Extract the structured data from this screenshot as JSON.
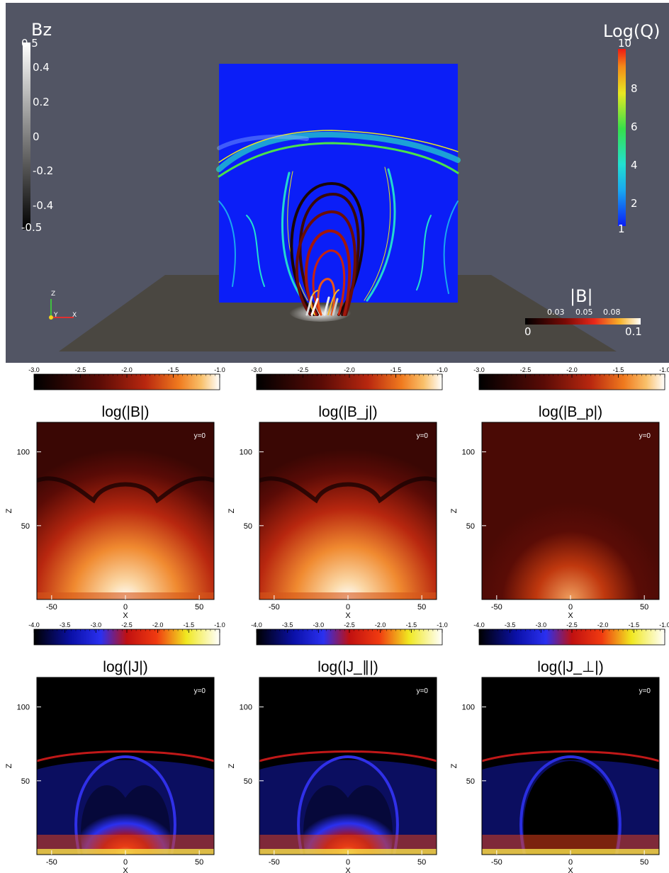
{
  "top_scene": {
    "bz_colorbar": {
      "title": "Bz",
      "ticks": [
        "0.5",
        "0.4",
        "0.2",
        "0",
        "-0.2",
        "-0.4",
        "-0.5"
      ]
    },
    "logq_colorbar": {
      "title": "Log(Q)",
      "ticks": [
        "10",
        "8",
        "6",
        "4",
        "2",
        "1"
      ]
    },
    "b_colorbar": {
      "title": "|B|",
      "upper_ticks": [
        "0.03",
        "0.05",
        "0.08"
      ],
      "lower_ticks": [
        "0",
        "0.1"
      ]
    },
    "axes_triad": {
      "z": "Z",
      "y": "Y",
      "x": "X"
    }
  },
  "chart_data": [
    {
      "type": "heatmap",
      "title": "log(|B|)",
      "quantity": "B",
      "xlabel": "X",
      "ylabel": "Z",
      "annotation": "y=0",
      "xlim": [
        -60,
        60
      ],
      "ylim": [
        0,
        120
      ],
      "xticks": [
        "-50",
        "0",
        "50"
      ],
      "yticks": [
        "50",
        "100"
      ],
      "colorbar": {
        "min": -3.0,
        "max": -1.0,
        "ticks": [
          "-3.0",
          "-2.5",
          "-2.0",
          "-1.5",
          "-1.0"
        ],
        "colormap": "black-red-yellow-white"
      }
    },
    {
      "type": "heatmap",
      "title": "log(|B_j|)",
      "quantity": "Bj",
      "xlabel": "X",
      "ylabel": "Z",
      "annotation": "y=0",
      "xlim": [
        -60,
        60
      ],
      "ylim": [
        0,
        120
      ],
      "xticks": [
        "-50",
        "0",
        "50"
      ],
      "yticks": [
        "50",
        "100"
      ],
      "colorbar": {
        "min": -3.0,
        "max": -1.0,
        "ticks": [
          "-3.0",
          "-2.5",
          "-2.0",
          "-1.5",
          "-1.0"
        ],
        "colormap": "black-red-yellow-white"
      }
    },
    {
      "type": "heatmap",
      "title": "log(|B_p|)",
      "quantity": "Bp",
      "xlabel": "X",
      "ylabel": "Z",
      "annotation": "y=0",
      "xlim": [
        -60,
        60
      ],
      "ylim": [
        0,
        120
      ],
      "xticks": [
        "-50",
        "0",
        "50"
      ],
      "yticks": [
        "50",
        "100"
      ],
      "colorbar": {
        "min": -3.0,
        "max": -1.0,
        "ticks": [
          "-3.0",
          "-2.5",
          "-2.0",
          "-1.5",
          "-1.0"
        ],
        "colormap": "black-red-yellow-white"
      }
    },
    {
      "type": "heatmap",
      "title": "log(|J|)",
      "quantity": "J",
      "xlabel": "X",
      "ylabel": "Z",
      "annotation": "y=0",
      "xlim": [
        -60,
        60
      ],
      "ylim": [
        0,
        120
      ],
      "xticks": [
        "-50",
        "0",
        "50"
      ],
      "yticks": [
        "50",
        "100"
      ],
      "colorbar": {
        "min": -4.0,
        "max": -1.0,
        "ticks": [
          "-4.0",
          "-3.5",
          "-3.0",
          "-2.5",
          "-2.0",
          "-1.5",
          "-1.0"
        ],
        "colormap": "black-blue-red-yellow-white"
      }
    },
    {
      "type": "heatmap",
      "title": "log(|J_∥|)",
      "quantity": "Jpar",
      "xlabel": "X",
      "ylabel": "Z",
      "annotation": "y=0",
      "xlim": [
        -60,
        60
      ],
      "ylim": [
        0,
        120
      ],
      "xticks": [
        "-50",
        "0",
        "50"
      ],
      "yticks": [
        "50",
        "100"
      ],
      "colorbar": {
        "min": -4.0,
        "max": -1.0,
        "ticks": [
          "-4.0",
          "-3.5",
          "-3.0",
          "-2.5",
          "-2.0",
          "-1.5",
          "-1.0"
        ],
        "colormap": "black-blue-red-yellow-white"
      }
    },
    {
      "type": "heatmap",
      "title": "log(|J_⊥|)",
      "quantity": "Jperp",
      "xlabel": "X",
      "ylabel": "Z",
      "annotation": "y=0",
      "xlim": [
        -60,
        60
      ],
      "ylim": [
        0,
        120
      ],
      "xticks": [
        "-50",
        "0",
        "50"
      ],
      "yticks": [
        "50",
        "100"
      ],
      "colorbar": {
        "min": -4.0,
        "max": -1.0,
        "ticks": [
          "-4.0",
          "-3.5",
          "-3.0",
          "-2.5",
          "-2.0",
          "-1.5",
          "-1.0"
        ],
        "colormap": "black-blue-red-yellow-white"
      }
    }
  ]
}
